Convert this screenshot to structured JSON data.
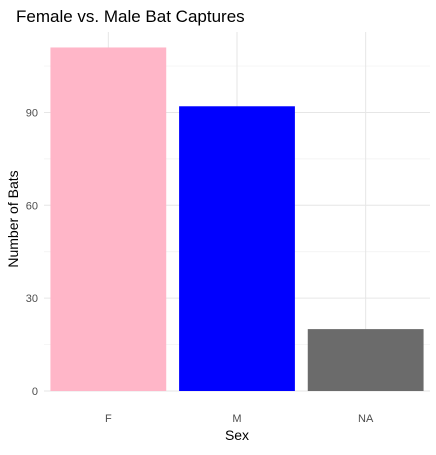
{
  "chart_data": {
    "type": "bar",
    "title": "Female vs. Male Bat Captures",
    "xlabel": "Sex",
    "ylabel": "Number of Bats",
    "categories": [
      "F",
      "M",
      "NA"
    ],
    "values": [
      111,
      92,
      20
    ],
    "bar_colors": [
      "#FFB6C8",
      "#0000FF",
      "#6B6B6B"
    ],
    "ylim": [
      0,
      116
    ],
    "yticks": [
      0,
      30,
      60,
      90
    ],
    "grid": true,
    "legend": "none",
    "theme": "minimal"
  }
}
